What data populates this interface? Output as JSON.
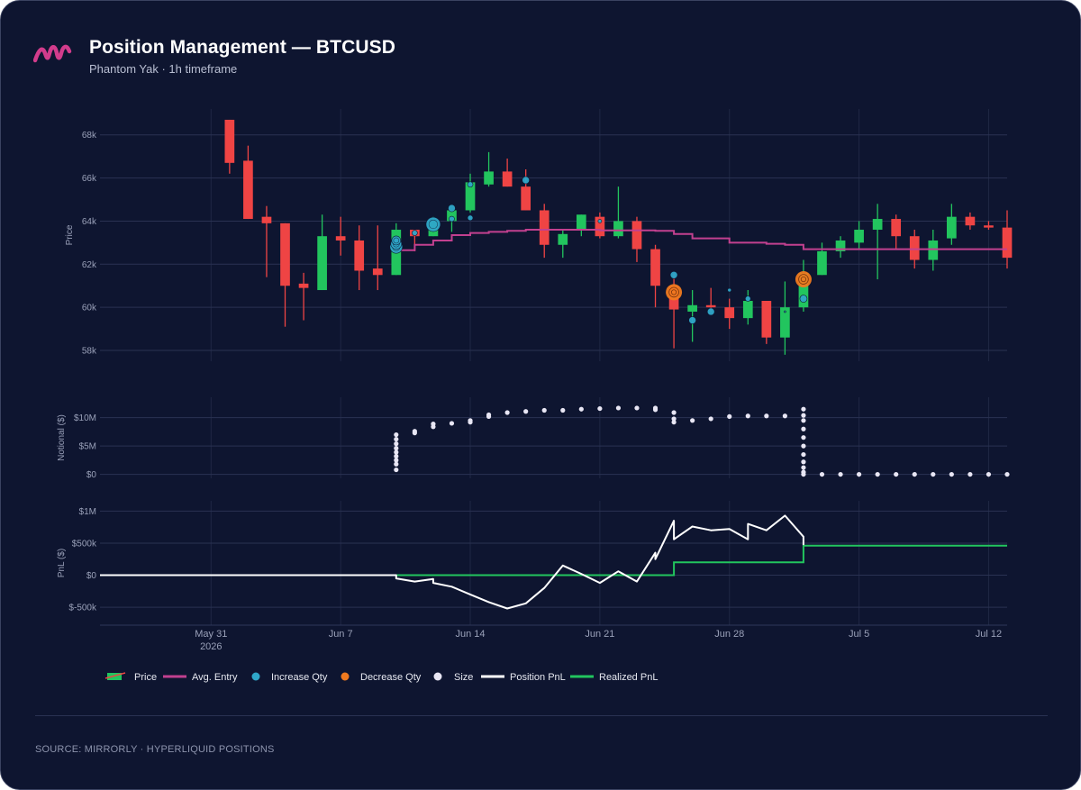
{
  "header": {
    "title": "Position Management — BTCUSD",
    "subtitle": "Phantom Yak · 1h timeframe"
  },
  "footer": {
    "source": "SOURCE: MIRRORLY · HYPERLIQUID POSITIONS"
  },
  "colors": {
    "background": "#0e1530",
    "up": "#22c55e",
    "down": "#ef4444",
    "avg_entry": "#c2408f",
    "increase": "#2fa7c9",
    "decrease": "#f07a1f",
    "size": "#e8e6f4",
    "position_pnl": "#ffffff",
    "realized_pnl": "#22c55e",
    "logo": "#d23c8c"
  },
  "chart_data": {
    "type": "candlestick",
    "x_range": [
      "2026-05-25",
      "2026-07-13"
    ],
    "x_ticks": [
      {
        "date": "2026-05-31",
        "label": "May 31",
        "sublabel": "2026"
      },
      {
        "date": "2026-06-07",
        "label": "Jun 7",
        "sublabel": ""
      },
      {
        "date": "2026-06-14",
        "label": "Jun 14",
        "sublabel": ""
      },
      {
        "date": "2026-06-21",
        "label": "Jun 21",
        "sublabel": ""
      },
      {
        "date": "2026-06-28",
        "label": "Jun 28",
        "sublabel": ""
      },
      {
        "date": "2026-07-05",
        "label": "Jul 5",
        "sublabel": ""
      },
      {
        "date": "2026-07-12",
        "label": "Jul 12",
        "sublabel": ""
      }
    ],
    "price_panel": {
      "ylabel": "Price",
      "ylim": [
        57500,
        69200
      ],
      "ticks": [
        {
          "v": 58000,
          "label": "58k"
        },
        {
          "v": 60000,
          "label": "60k"
        },
        {
          "v": 62000,
          "label": "62k"
        },
        {
          "v": 64000,
          "label": "64k"
        },
        {
          "v": 66000,
          "label": "66k"
        },
        {
          "v": 68000,
          "label": "68k"
        }
      ],
      "candles": [
        {
          "d": "2026-06-01",
          "o": 68700,
          "h": 68700,
          "l": 66200,
          "c": 66700
        },
        {
          "d": "2026-06-02",
          "o": 66800,
          "h": 67500,
          "l": 64100,
          "c": 64100
        },
        {
          "d": "2026-06-03",
          "o": 64200,
          "h": 64700,
          "l": 61400,
          "c": 63900
        },
        {
          "d": "2026-06-04",
          "o": 63900,
          "h": 63900,
          "l": 59100,
          "c": 61000
        },
        {
          "d": "2026-06-05",
          "o": 61100,
          "h": 61600,
          "l": 59400,
          "c": 60900
        },
        {
          "d": "2026-06-06",
          "o": 60800,
          "h": 64300,
          "l": 60800,
          "c": 63300
        },
        {
          "d": "2026-06-07",
          "o": 63300,
          "h": 64200,
          "l": 62400,
          "c": 63100
        },
        {
          "d": "2026-06-08",
          "o": 63100,
          "h": 63800,
          "l": 60800,
          "c": 61700
        },
        {
          "d": "2026-06-09",
          "o": 61800,
          "h": 63800,
          "l": 60800,
          "c": 61500
        },
        {
          "d": "2026-06-10",
          "o": 61500,
          "h": 63900,
          "l": 61500,
          "c": 63600
        },
        {
          "d": "2026-06-11",
          "o": 63600,
          "h": 63600,
          "l": 62600,
          "c": 63300
        },
        {
          "d": "2026-06-12",
          "o": 63300,
          "h": 64200,
          "l": 63300,
          "c": 64000
        },
        {
          "d": "2026-06-13",
          "o": 64000,
          "h": 64500,
          "l": 63500,
          "c": 64500
        },
        {
          "d": "2026-06-14",
          "o": 64500,
          "h": 66200,
          "l": 64400,
          "c": 65800
        },
        {
          "d": "2026-06-15",
          "o": 65700,
          "h": 67200,
          "l": 65600,
          "c": 66300
        },
        {
          "d": "2026-06-16",
          "o": 66300,
          "h": 66900,
          "l": 65600,
          "c": 65600
        },
        {
          "d": "2026-06-17",
          "o": 65600,
          "h": 66400,
          "l": 64500,
          "c": 64500
        },
        {
          "d": "2026-06-18",
          "o": 64500,
          "h": 64800,
          "l": 62300,
          "c": 62900
        },
        {
          "d": "2026-06-19",
          "o": 62900,
          "h": 63600,
          "l": 62300,
          "c": 63400
        },
        {
          "d": "2026-06-20",
          "o": 63600,
          "h": 64300,
          "l": 63300,
          "c": 64300
        },
        {
          "d": "2026-06-21",
          "o": 64200,
          "h": 64400,
          "l": 63200,
          "c": 63300
        },
        {
          "d": "2026-06-22",
          "o": 63300,
          "h": 65600,
          "l": 63200,
          "c": 64000
        },
        {
          "d": "2026-06-23",
          "o": 64000,
          "h": 64200,
          "l": 62100,
          "c": 62700
        },
        {
          "d": "2026-06-24",
          "o": 62700,
          "h": 62900,
          "l": 60000,
          "c": 61000
        },
        {
          "d": "2026-06-25",
          "o": 61000,
          "h": 61600,
          "l": 58100,
          "c": 59900
        },
        {
          "d": "2026-06-26",
          "o": 59800,
          "h": 60800,
          "l": 58400,
          "c": 60100
        },
        {
          "d": "2026-06-27",
          "o": 60100,
          "h": 60900,
          "l": 59800,
          "c": 60000
        },
        {
          "d": "2026-06-28",
          "o": 60000,
          "h": 60400,
          "l": 59000,
          "c": 59500
        },
        {
          "d": "2026-06-29",
          "o": 59500,
          "h": 60800,
          "l": 59200,
          "c": 60300
        },
        {
          "d": "2026-06-30",
          "o": 60300,
          "h": 60300,
          "l": 58300,
          "c": 58600
        },
        {
          "d": "2026-07-01",
          "o": 58600,
          "h": 61200,
          "l": 57800,
          "c": 60000
        },
        {
          "d": "2026-07-02",
          "o": 60000,
          "h": 62200,
          "l": 59800,
          "c": 61600
        },
        {
          "d": "2026-07-03",
          "o": 61500,
          "h": 63000,
          "l": 61500,
          "c": 62600
        },
        {
          "d": "2026-07-04",
          "o": 62600,
          "h": 63300,
          "l": 62300,
          "c": 63100
        },
        {
          "d": "2026-07-05",
          "o": 63000,
          "h": 64000,
          "l": 62700,
          "c": 63600
        },
        {
          "d": "2026-07-06",
          "o": 63600,
          "h": 64800,
          "l": 61300,
          "c": 64100
        },
        {
          "d": "2026-07-07",
          "o": 64100,
          "h": 64300,
          "l": 62700,
          "c": 63300
        },
        {
          "d": "2026-07-08",
          "o": 63300,
          "h": 63600,
          "l": 61800,
          "c": 62200
        },
        {
          "d": "2026-07-09",
          "o": 62200,
          "h": 63600,
          "l": 61700,
          "c": 63100
        },
        {
          "d": "2026-07-10",
          "o": 63200,
          "h": 64800,
          "l": 62900,
          "c": 64200
        },
        {
          "d": "2026-07-11",
          "o": 64200,
          "h": 64400,
          "l": 63600,
          "c": 63800
        },
        {
          "d": "2026-07-12",
          "o": 63800,
          "h": 64000,
          "l": 63600,
          "c": 63700
        },
        {
          "d": "2026-07-13",
          "o": 63700,
          "h": 64500,
          "l": 61800,
          "c": 62300
        }
      ],
      "avg_entry": [
        [
          "2026-06-10",
          62650
        ],
        [
          "2026-06-11",
          62900
        ],
        [
          "2026-06-12",
          63100
        ],
        [
          "2026-06-13",
          63350
        ],
        [
          "2026-06-14",
          63450
        ],
        [
          "2026-06-15",
          63500
        ],
        [
          "2026-06-16",
          63550
        ],
        [
          "2026-06-17",
          63600
        ],
        [
          "2026-06-19",
          63600
        ],
        [
          "2026-06-21",
          63570
        ],
        [
          "2026-06-24",
          63550
        ],
        [
          "2026-06-25",
          63400
        ],
        [
          "2026-06-26",
          63200
        ],
        [
          "2026-06-28",
          63000
        ],
        [
          "2026-06-30",
          62950
        ],
        [
          "2026-07-01",
          62900
        ],
        [
          "2026-07-02",
          62700
        ],
        [
          "2026-07-13",
          62700
        ]
      ],
      "increase_qty": [
        [
          "2026-06-10",
          62800,
          7
        ],
        [
          "2026-06-10",
          62950,
          6
        ],
        [
          "2026-06-10",
          63100,
          5
        ],
        [
          "2026-06-11",
          63450,
          3
        ],
        [
          "2026-06-12",
          63850,
          8
        ],
        [
          "2026-06-13",
          64100,
          3
        ],
        [
          "2026-06-13",
          64600,
          4
        ],
        [
          "2026-06-14",
          64150,
          3
        ],
        [
          "2026-06-14",
          65700,
          3
        ],
        [
          "2026-06-17",
          65900,
          4
        ],
        [
          "2026-06-21",
          64000,
          2
        ],
        [
          "2026-06-25",
          61500,
          4
        ],
        [
          "2026-06-26",
          59400,
          4
        ],
        [
          "2026-06-27",
          59800,
          4
        ],
        [
          "2026-06-28",
          60800,
          2
        ],
        [
          "2026-06-29",
          60400,
          3
        ],
        [
          "2026-07-01",
          59800,
          1
        ],
        [
          "2026-07-02",
          60400,
          4
        ]
      ],
      "decrease_qty": [
        [
          "2026-06-25",
          60700,
          9
        ],
        [
          "2026-07-02",
          61300,
          9
        ]
      ],
      "legend": [
        "Price",
        "Avg. Entry",
        "Increase Qty",
        "Decrease Qty",
        "Size",
        "Position PnL",
        "Realized PnL"
      ]
    },
    "notional_panel": {
      "ylabel": "Notional ($)",
      "ylim": [
        -700000,
        13600000
      ],
      "ticks": [
        {
          "v": 0,
          "label": "$0"
        },
        {
          "v": 5000000,
          "label": "$5M"
        },
        {
          "v": 10000000,
          "label": "$10M"
        }
      ],
      "size_points": [
        [
          "2026-06-10",
          800000
        ],
        [
          "2026-06-10",
          1800000
        ],
        [
          "2026-06-10",
          2500000
        ],
        [
          "2026-06-10",
          3200000
        ],
        [
          "2026-06-10",
          3900000
        ],
        [
          "2026-06-10",
          4600000
        ],
        [
          "2026-06-10",
          5400000
        ],
        [
          "2026-06-10",
          6200000
        ],
        [
          "2026-06-10",
          7000000
        ],
        [
          "2026-06-11",
          7300000
        ],
        [
          "2026-06-11",
          7600000
        ],
        [
          "2026-06-12",
          8400000
        ],
        [
          "2026-06-12",
          8900000
        ],
        [
          "2026-06-13",
          9000000
        ],
        [
          "2026-06-14",
          9200000
        ],
        [
          "2026-06-14",
          9500000
        ],
        [
          "2026-06-15",
          10200000
        ],
        [
          "2026-06-15",
          10500000
        ],
        [
          "2026-06-16",
          10900000
        ],
        [
          "2026-06-17",
          11100000
        ],
        [
          "2026-06-18",
          11300000
        ],
        [
          "2026-06-19",
          11300000
        ],
        [
          "2026-06-20",
          11500000
        ],
        [
          "2026-06-21",
          11600000
        ],
        [
          "2026-06-22",
          11700000
        ],
        [
          "2026-06-23",
          11700000
        ],
        [
          "2026-06-24",
          11700000
        ],
        [
          "2026-06-24",
          11400000
        ],
        [
          "2026-06-25",
          10900000
        ],
        [
          "2026-06-25",
          9800000
        ],
        [
          "2026-06-25",
          9200000
        ],
        [
          "2026-06-26",
          9500000
        ],
        [
          "2026-06-27",
          9800000
        ],
        [
          "2026-06-28",
          10200000
        ],
        [
          "2026-06-29",
          10300000
        ],
        [
          "2026-06-30",
          10300000
        ],
        [
          "2026-07-01",
          10300000
        ],
        [
          "2026-07-02",
          10400000
        ],
        [
          "2026-07-02",
          11500000
        ],
        [
          "2026-07-02",
          9500000
        ],
        [
          "2026-07-02",
          8000000
        ],
        [
          "2026-07-02",
          6500000
        ],
        [
          "2026-07-02",
          5000000
        ],
        [
          "2026-07-02",
          3500000
        ],
        [
          "2026-07-02",
          2200000
        ],
        [
          "2026-07-02",
          1200000
        ],
        [
          "2026-07-02",
          400000
        ],
        [
          "2026-07-02",
          0
        ],
        [
          "2026-07-03",
          0
        ],
        [
          "2026-07-04",
          0
        ],
        [
          "2026-07-05",
          0
        ],
        [
          "2026-07-06",
          0
        ],
        [
          "2026-07-07",
          0
        ],
        [
          "2026-07-08",
          0
        ],
        [
          "2026-07-09",
          0
        ],
        [
          "2026-07-10",
          0
        ],
        [
          "2026-07-11",
          0
        ],
        [
          "2026-07-12",
          0
        ],
        [
          "2026-07-13",
          0
        ]
      ]
    },
    "pnl_panel": {
      "ylabel": "PnL ($)",
      "ylim": [
        -780000,
        1160000
      ],
      "ticks": [
        {
          "v": -500000,
          "label": "$-500k"
        },
        {
          "v": 0,
          "label": "$0"
        },
        {
          "v": 500000,
          "label": "$500k"
        },
        {
          "v": 1000000,
          "label": "$1M"
        }
      ],
      "position_pnl": [
        [
          "2026-05-25",
          0
        ],
        [
          "2026-06-10",
          0
        ],
        [
          "2026-06-10",
          -50000
        ],
        [
          "2026-06-11",
          -100000
        ],
        [
          "2026-06-12",
          -60000
        ],
        [
          "2026-06-12",
          -120000
        ],
        [
          "2026-06-13",
          -180000
        ],
        [
          "2026-06-14",
          -300000
        ],
        [
          "2026-06-15",
          -420000
        ],
        [
          "2026-06-16",
          -520000
        ],
        [
          "2026-06-17",
          -440000
        ],
        [
          "2026-06-18",
          -200000
        ],
        [
          "2026-06-19",
          150000
        ],
        [
          "2026-06-20",
          20000
        ],
        [
          "2026-06-21",
          -120000
        ],
        [
          "2026-06-22",
          60000
        ],
        [
          "2026-06-23",
          -100000
        ],
        [
          "2026-06-24",
          350000
        ],
        [
          "2026-06-24",
          250000
        ],
        [
          "2026-06-25",
          850000
        ],
        [
          "2026-06-25",
          560000
        ],
        [
          "2026-06-26",
          760000
        ],
        [
          "2026-06-27",
          700000
        ],
        [
          "2026-06-28",
          720000
        ],
        [
          "2026-06-29",
          560000
        ],
        [
          "2026-06-29",
          800000
        ],
        [
          "2026-06-30",
          700000
        ],
        [
          "2026-07-01",
          930000
        ],
        [
          "2026-07-02",
          600000
        ],
        [
          "2026-07-02",
          470000
        ]
      ],
      "realized_pnl": [
        [
          "2026-05-25",
          0
        ],
        [
          "2026-06-25",
          0
        ],
        [
          "2026-06-25",
          200000
        ],
        [
          "2026-07-02",
          200000
        ],
        [
          "2026-07-02",
          460000
        ],
        [
          "2026-07-13",
          460000
        ]
      ]
    }
  }
}
